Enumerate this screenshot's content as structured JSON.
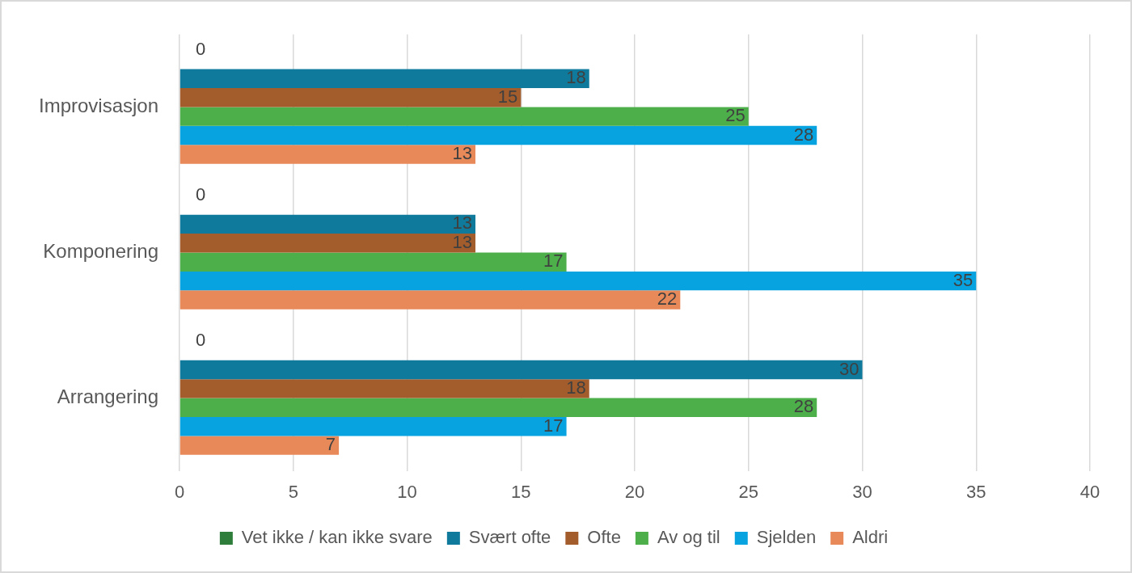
{
  "chart_data": {
    "type": "bar",
    "orientation": "horizontal",
    "categories": [
      "Improvisasjon",
      "Komponering",
      "Arrangering"
    ],
    "series": [
      {
        "name": "Vet ikke / kan ikke svare",
        "color": "#2e7d3a",
        "values": [
          0,
          0,
          0
        ]
      },
      {
        "name": "Svært ofte",
        "color": "#0f7a9b",
        "values": [
          18,
          13,
          30
        ]
      },
      {
        "name": "Ofte",
        "color": "#a35d2d",
        "values": [
          15,
          13,
          18
        ]
      },
      {
        "name": "Av og til",
        "color": "#4daf4a",
        "values": [
          25,
          17,
          28
        ]
      },
      {
        "name": "Sjelden",
        "color": "#06a3e0",
        "values": [
          28,
          35,
          17
        ]
      },
      {
        "name": "Aldri",
        "color": "#e8895a",
        "values": [
          13,
          22,
          7
        ]
      }
    ],
    "xlim": [
      0,
      40
    ],
    "xticks": [
      0,
      5,
      10,
      15,
      20,
      25,
      30,
      35,
      40
    ],
    "grid": true,
    "legend": "bottom",
    "data_labels": true
  }
}
